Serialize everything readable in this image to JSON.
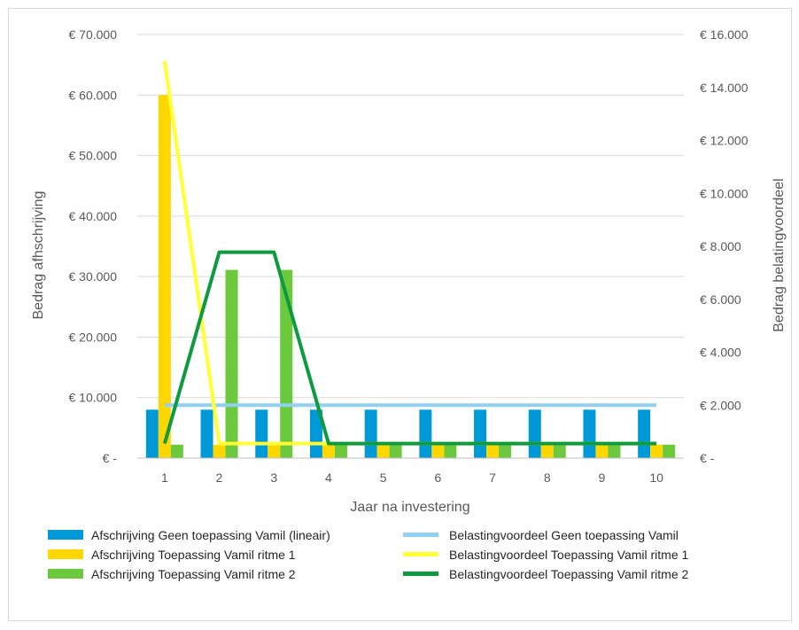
{
  "chart_data": {
    "type": "bar",
    "combo": "bar+line (dual axis)",
    "categories": [
      "1",
      "2",
      "3",
      "4",
      "5",
      "6",
      "7",
      "8",
      "9",
      "10"
    ],
    "xlabel": "Jaar na investering",
    "ylabel": "Bedrag afhschrijving",
    "y2label": "Bedrag belatingvoordeel",
    "ylim": [
      0,
      70000
    ],
    "y2lim": [
      0,
      16000
    ],
    "yticks": [
      "€ -",
      "€ 10.000",
      "€ 20.000",
      "€ 30.000",
      "€ 40.000",
      "€ 50.000",
      "€ 60.000",
      "€ 70.000"
    ],
    "y2ticks": [
      "€ -",
      "€ 2.000",
      "€ 4.000",
      "€ 6.000",
      "€ 8.000",
      "€ 10.000",
      "€ 12.000",
      "€ 14.000",
      "€ 16.000"
    ],
    "grid": true,
    "legend_position": "bottom",
    "bar_series": [
      {
        "name": "Afschrijving Geen toepassing Vamil (lineair)",
        "color": "#0099d8",
        "values": [
          8000,
          8000,
          8000,
          8000,
          8000,
          8000,
          8000,
          8000,
          8000,
          8000
        ]
      },
      {
        "name": "Afschrijving Toepassing Vamil ritme 1",
        "color": "#ffd700",
        "values": [
          60000,
          2222,
          2222,
          2222,
          2222,
          2222,
          2222,
          2222,
          2222,
          2222
        ]
      },
      {
        "name": "Afschrijving Toepassing Vamil ritme 2",
        "color": "#6cc93e",
        "values": [
          2222,
          31111,
          31111,
          2222,
          2222,
          2222,
          2222,
          2222,
          2222,
          2222
        ]
      }
    ],
    "line_series": [
      {
        "name": "Belastingvoordeel Geen toepassing Vamil",
        "color": "#8fd0f3",
        "values": [
          2000,
          2000,
          2000,
          2000,
          2000,
          2000,
          2000,
          2000,
          2000,
          2000
        ]
      },
      {
        "name": "Belastingvoordeel Toepassing Vamil ritme 1",
        "color": "#ffff33",
        "values": [
          15000,
          550,
          550,
          550,
          550,
          550,
          550,
          550,
          550,
          550
        ]
      },
      {
        "name": "Belastingvoordeel Toepassing Vamil ritme 2",
        "color": "#0e9a3e",
        "values": [
          550,
          7780,
          7780,
          550,
          550,
          550,
          550,
          550,
          550,
          550
        ]
      }
    ]
  }
}
